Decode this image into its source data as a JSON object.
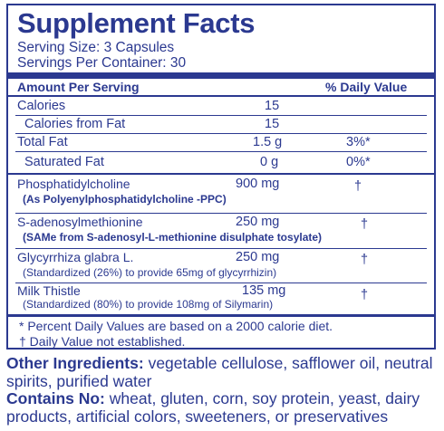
{
  "facts": {
    "title": "Supplement Facts",
    "serving_size": "Serving Size: 3 Capsules",
    "servings_per_container": "Servings Per Container: 30",
    "header_amount": "Amount Per Serving",
    "header_dv": "% Daily Value",
    "rows": [
      {
        "name": "Calories",
        "amount": "15",
        "dv": ""
      },
      {
        "name": "Calories from Fat",
        "amount": "15",
        "dv": ""
      },
      {
        "name": "Total Fat",
        "amount": "1.5 g",
        "dv": "3%*"
      },
      {
        "name": "Saturated Fat",
        "amount": "0 g",
        "dv": "0%*"
      },
      {
        "name": "Phosphatidylcholine",
        "sub": "(As Polyenylphosphatidylcholine -PPC)",
        "amount": "900 mg",
        "dv": "†"
      },
      {
        "name": "S-adenosylmethionine",
        "sub": "(SAMe from S-adenosyl-L-methionine disulphate tosylate)",
        "amount": "250 mg",
        "dv": "†"
      },
      {
        "name": "Glycyrrhiza glabra L.",
        "sub": "(Standardized (26%) to provide 65mg of glycyrrhizin)",
        "amount": "250 mg",
        "dv": "†"
      },
      {
        "name": "Milk Thistle",
        "sub": "(Standardized (80%) to provide 108mg of Silymarin)",
        "amount": "135 mg",
        "dv": "†"
      }
    ],
    "footnote_1": "* Percent Daily Values are based on a 2000 calorie diet.",
    "footnote_2": "† Daily Value not established."
  },
  "other": {
    "ingredients_label": "Other Ingredients:",
    "ingredients_text": "vegetable cellulose, safflower oil, neutral spirits, purified water",
    "contains_label": "Contains No:",
    "contains_text": "wheat, gluten, corn, soy protein, yeast, dairy products, artificial colors, sweeteners, or preservatives"
  },
  "colors": {
    "text": "#2b3990",
    "background": "#ffffff"
  }
}
